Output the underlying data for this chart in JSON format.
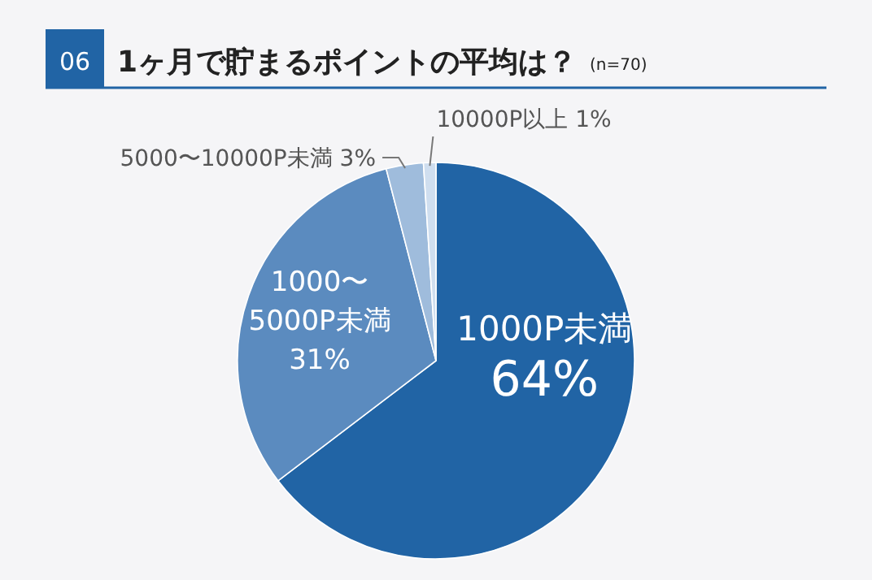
{
  "chart_data": {
    "type": "pie",
    "title": "1ヶ月で貯まるポイントの平均は？",
    "subtitle": "(n=70)",
    "annotations": [
      "06"
    ],
    "categories": [
      "1000P未満",
      "1000〜5000P未満",
      "5000〜10000P未満",
      "10000P以上"
    ],
    "values": [
      64,
      31,
      3,
      1
    ],
    "value_labels": [
      "64%",
      "31%",
      "3%",
      "1%"
    ],
    "colors": [
      "#2164a5",
      "#5b8bbf",
      "#9fbcdc",
      "#cfdeef"
    ]
  }
}
